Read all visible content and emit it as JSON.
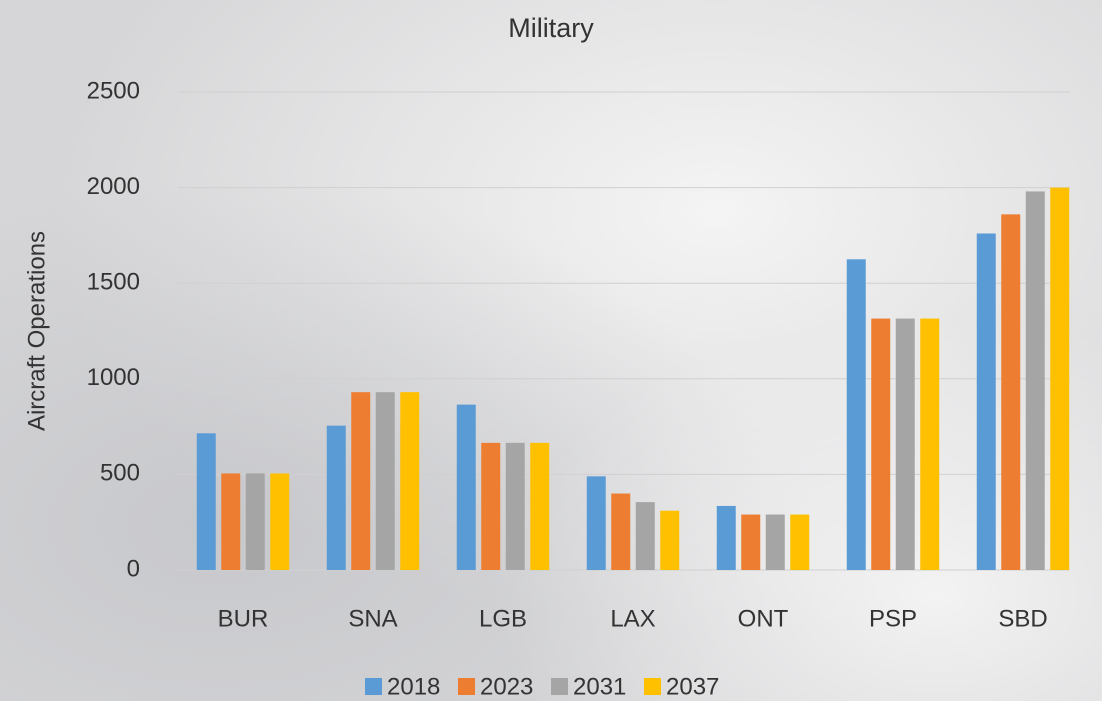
{
  "chart_data": {
    "type": "bar",
    "title": "Military",
    "y_label": "Aircraft Operations",
    "categories": [
      "BUR",
      "SNA",
      "LGB",
      "LAX",
      "ONT",
      "PSP",
      "SBD"
    ],
    "series": [
      {
        "name": "2018",
        "color": "#5b9bd5",
        "values": [
          715,
          755,
          865,
          490,
          335,
          1625,
          1760
        ]
      },
      {
        "name": "2023",
        "color": "#ed7d31",
        "values": [
          505,
          930,
          665,
          400,
          290,
          1315,
          1860
        ]
      },
      {
        "name": "2031",
        "color": "#a5a5a5",
        "values": [
          505,
          930,
          665,
          355,
          290,
          1315,
          1980
        ]
      },
      {
        "name": "2037",
        "color": "#ffc000",
        "values": [
          505,
          930,
          665,
          310,
          290,
          1315,
          2000
        ]
      }
    ],
    "ylim": [
      0,
      2500
    ],
    "yticks": [
      0,
      500,
      1000,
      1500,
      2000,
      2500
    ],
    "grid": true,
    "legend": "bottom"
  }
}
